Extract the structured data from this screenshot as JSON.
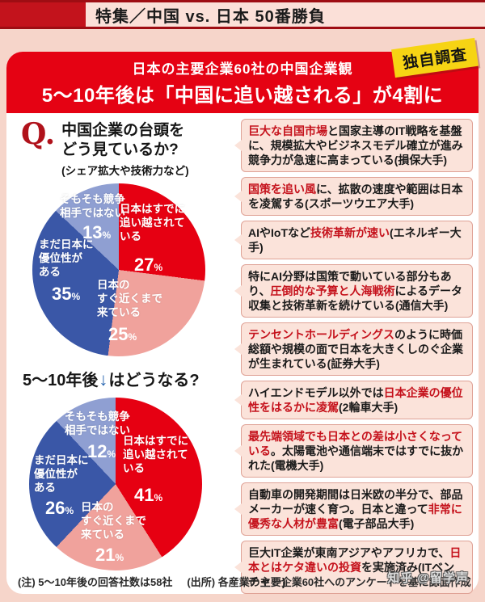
{
  "masthead": {
    "label": "特集／中国 vs. 日本 50番勝負"
  },
  "banner": {
    "line1": "日本の主要企業60社の中国企業観",
    "line2": "5〜10年後は「中国に追い越される」が4割に",
    "badge": "独自調査"
  },
  "question": {
    "q_mark": "Q.",
    "line1": "中国企業の台頭を",
    "line2": "どう見ているか?",
    "note": "(シェア拡大や技術力など)"
  },
  "subheading2": {
    "pre": "5〜10年後",
    "arrow": "↓",
    "post": "はどうなる?"
  },
  "chart_data": [
    {
      "type": "pie",
      "title": "中国企業の台頭をどう見ているか?(シェア拡大や技術力など)",
      "categories": [
        "日本はすでに追い越されている",
        "日本のすぐ近くまで来ている",
        "まだ日本に優位性がある",
        "そもそも競争相手ではない"
      ],
      "values": [
        27,
        25,
        35,
        13
      ],
      "colors": [
        "#e60012",
        "#f0a29c",
        "#3a57a7",
        "#8f9fd2"
      ],
      "label_lines": [
        [
          "日本はすでに",
          "追い越されて",
          "いる"
        ],
        [
          "日本の",
          "すぐ近くまで",
          "来ている"
        ],
        [
          "まだ日本に",
          "優位性が",
          "ある"
        ],
        [
          "そもそも競争",
          "相手ではない"
        ]
      ]
    },
    {
      "type": "pie",
      "title": "5〜10年後はどうなる?",
      "categories": [
        "日本はすでに追い越されている",
        "日本のすぐ近くまで来ている",
        "まだ日本に優位性がある",
        "そもそも競争相手ではない"
      ],
      "values": [
        41,
        21,
        26,
        12
      ],
      "colors": [
        "#e60012",
        "#f0a29c",
        "#3a57a7",
        "#8f9fd2"
      ],
      "label_lines": [
        [
          "日本はすでに",
          "追い越されて",
          "いる"
        ],
        [
          "日本の",
          "すぐ近くまで",
          "来ている"
        ],
        [
          "まだ日本に",
          "優位性が",
          "ある"
        ],
        [
          "そもそも競争",
          "相手ではない"
        ]
      ]
    }
  ],
  "callouts": [
    {
      "segments": [
        {
          "t": "巨大な自国市場",
          "red": true
        },
        {
          "t": "と国家主導のIT戦略を基盤に、規模拡大やビジネスモデル確立が進み競争力が急速に高まっている",
          "red": false
        },
        {
          "t": "(損保大手)",
          "red": false
        }
      ]
    },
    {
      "segments": [
        {
          "t": "国策を追い風",
          "red": true
        },
        {
          "t": "に、拡散の速度や範囲は日本を凌駕する",
          "red": false
        },
        {
          "t": "(スポーツウエア大手)",
          "red": false
        }
      ]
    },
    {
      "segments": [
        {
          "t": "AIやIoTなど",
          "red": false
        },
        {
          "t": "技術革新が速い",
          "red": true
        },
        {
          "t": "(エネルギー大手)",
          "red": false
        }
      ]
    },
    {
      "segments": [
        {
          "t": "特にAI分野は国策で動いている部分もあり、",
          "red": false
        },
        {
          "t": "圧倒的な予算と人海戦術",
          "red": true
        },
        {
          "t": "によるデータ収集と技術革新を続けている",
          "red": false
        },
        {
          "t": "(通信大手)",
          "red": false
        }
      ]
    },
    {
      "segments": [
        {
          "t": "テンセントホールディングス",
          "red": true
        },
        {
          "t": "のように時価総額や規模の面で日本を大きくしのぐ企業が生まれている",
          "red": false
        },
        {
          "t": "(証券大手)",
          "red": false
        }
      ]
    },
    {
      "segments": [
        {
          "t": "ハイエンドモデル以外では",
          "red": false
        },
        {
          "t": "日本企業の優位性をはるかに凌駕",
          "red": true
        },
        {
          "t": "(2輪車大手)",
          "red": false
        }
      ]
    },
    {
      "segments": [
        {
          "t": "最先端領域でも日本との差は小さくなっている",
          "red": true
        },
        {
          "t": "。太陽電池や通信端末ではすでに抜かれた",
          "red": false
        },
        {
          "t": "(電機大手)",
          "red": false
        }
      ]
    },
    {
      "segments": [
        {
          "t": "自動車の開発期間は日米欧の半分で、部品メーカーが速く育つ。日本と違って",
          "red": false
        },
        {
          "t": "非常に優秀な人材が豊富",
          "red": true
        },
        {
          "t": "(電子部品大手)",
          "red": false
        }
      ]
    },
    {
      "segments": [
        {
          "t": "巨大IT企業が東南アジアやアフリカで、",
          "red": false
        },
        {
          "t": "日本とはケタ違いの投資",
          "red": true
        },
        {
          "t": "を実施済み",
          "red": false
        },
        {
          "t": "(ITベンチャー)",
          "red": false
        }
      ]
    }
  ],
  "footer": {
    "note_left": "(注) 5〜10年後の回答社数は58社",
    "note_right": "(出所) 各産業の主要企業60社へのアンケートを基に誌面作成",
    "watermark": "知乎 @留学声"
  },
  "colors": {
    "banner_red": "#e50213",
    "masthead_red": "#c3131c",
    "dark_red_border": "#9e0d13",
    "red_text": "#c5121c",
    "callout_bg": "#fbe3da",
    "badge_yellow": "#f6d414",
    "page_bg": "#f6d5ca",
    "arrow_blue": "#2563af",
    "pie_colors": [
      "#e60012",
      "#f0a29c",
      "#3a57a7",
      "#8f9fd2"
    ]
  }
}
